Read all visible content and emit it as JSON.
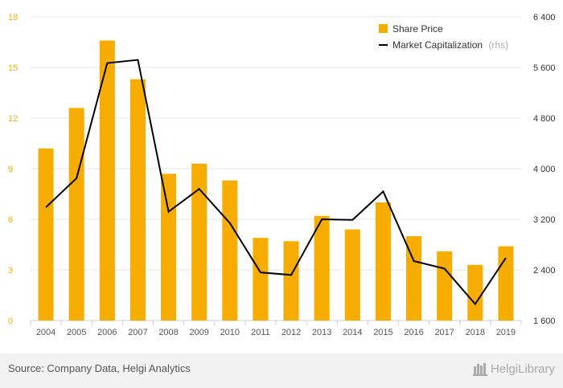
{
  "chart_data": {
    "type": "bar",
    "categories": [
      "2004",
      "2005",
      "2006",
      "2007",
      "2008",
      "2009",
      "2010",
      "2011",
      "2012",
      "2013",
      "2014",
      "2015",
      "2016",
      "2017",
      "2018",
      "2019"
    ],
    "series": [
      {
        "name": "Share Price",
        "type": "bar",
        "axis": "left",
        "color": "#f7ad00",
        "values": [
          10.2,
          12.6,
          16.6,
          14.3,
          8.7,
          9.3,
          8.3,
          4.9,
          4.7,
          6.2,
          5.4,
          7.0,
          5.0,
          4.1,
          3.3,
          4.4
        ]
      },
      {
        "name": "Market Capitalization",
        "name_suffix": "(rhs)",
        "type": "line",
        "axis": "right",
        "color": "#000000",
        "values": [
          3390,
          3850,
          5670,
          5720,
          3320,
          3680,
          3140,
          2360,
          2320,
          3200,
          3190,
          3640,
          2540,
          2420,
          1860,
          2590
        ]
      }
    ],
    "y_left": {
      "ylim": [
        0,
        18
      ],
      "ticks": [
        "0",
        "3",
        "6",
        "9",
        "12",
        "15",
        "18"
      ]
    },
    "y_right": {
      "ylim": [
        1600,
        6400
      ],
      "ticks": [
        "1 600",
        "2 400",
        "3 200",
        "4 000",
        "4 800",
        "5 600",
        "6 400"
      ]
    },
    "grid": true,
    "legend_position": "top-right"
  },
  "footer": {
    "source": "Source: Company Data, Helgi Analytics",
    "logo_text": "HelgiLibrary"
  },
  "colors": {
    "left_tick": "#f7ad00",
    "grid": "#e6e6e6",
    "footer_bg": "#f2f2f2"
  }
}
